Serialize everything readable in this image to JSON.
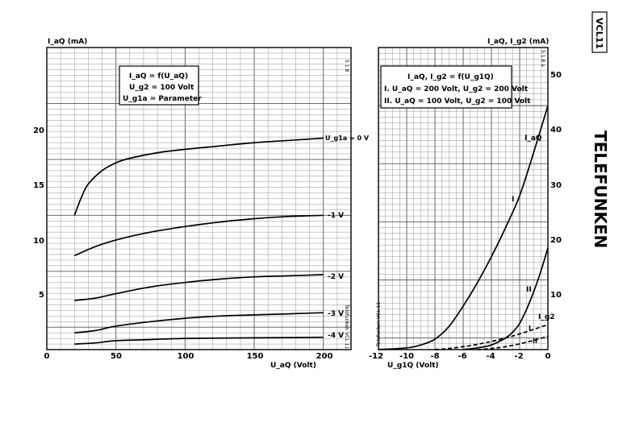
{
  "tube_label": "VCL11",
  "brand": "TELEFUNKEN",
  "colors": {
    "grid": "#8a8a8a",
    "ink": "#000000"
  },
  "chart_data": [
    {
      "type": "line",
      "ylabel": "I_aQ (mA)",
      "xlabel": "U_aQ (Volt)",
      "xlim": [
        0,
        220
      ],
      "ylim": [
        0,
        27
      ],
      "x_ticks": [
        "0",
        "50",
        "100",
        "150",
        "200"
      ],
      "y_ticks": [
        "5",
        "10",
        "15",
        "20"
      ],
      "legend": [
        "I_aQ  = f(U_aQ)",
        "U_g2 = 100 Volt",
        "U_g1a = Parameter"
      ],
      "corner_note": "5 1 8",
      "side_note": "Telefunken VCL 11",
      "series": [
        {
          "name": "U_g1a = 0 V",
          "x": [
            20,
            25,
            30,
            40,
            50,
            60,
            80,
            100,
            125,
            150,
            175,
            200
          ],
          "y": [
            12.0,
            13.6,
            14.8,
            16.0,
            16.7,
            17.1,
            17.6,
            17.9,
            18.2,
            18.5,
            18.7,
            18.9
          ]
        },
        {
          "name": "-1 V",
          "x": [
            20,
            35,
            50,
            75,
            100,
            125,
            150,
            175,
            200
          ],
          "y": [
            8.4,
            9.2,
            9.8,
            10.5,
            11.0,
            11.4,
            11.7,
            11.9,
            12.0
          ]
        },
        {
          "name": "-2 V",
          "x": [
            20,
            35,
            50,
            75,
            100,
            125,
            150,
            175,
            200
          ],
          "y": [
            4.4,
            4.6,
            5.0,
            5.6,
            6.0,
            6.3,
            6.5,
            6.6,
            6.7
          ]
        },
        {
          "name": "-3 V",
          "x": [
            20,
            35,
            50,
            75,
            100,
            125,
            150,
            175,
            200
          ],
          "y": [
            1.5,
            1.7,
            2.1,
            2.5,
            2.8,
            3.0,
            3.1,
            3.2,
            3.3
          ]
        },
        {
          "name": "-4 V",
          "x": [
            20,
            35,
            50,
            75,
            100,
            150,
            200
          ],
          "y": [
            0.5,
            0.6,
            0.8,
            0.9,
            1.0,
            1.05,
            1.1
          ]
        }
      ]
    },
    {
      "type": "line",
      "ylabel": "I_aQ, I_g2 (mA)",
      "xlabel": "U_g1Q (Volt)",
      "xlim": [
        -12,
        0
      ],
      "ylim": [
        0,
        52
      ],
      "x_ticks": [
        "-12",
        "-10",
        "-8",
        "-6",
        "-4",
        "-2",
        "0"
      ],
      "y_ticks": [
        "10",
        "20",
        "30",
        "40",
        "50"
      ],
      "legend": [
        "I_aQ, I_g2 = f(U_g1Q)",
        "I. U_aQ = 200 Volt, U_g2 = 200 Volt",
        "II. U_aQ = 100 Volt, U_g2 = 100 Volt"
      ],
      "corner_note": "5 1 8 a",
      "side_note": "Telefunken VCL 11",
      "curve_labels": [
        "I_aQ",
        "I",
        "II",
        "I_g2",
        "I",
        "II"
      ],
      "series": [
        {
          "name": "I_aQ (I)",
          "dashed": false,
          "x": [
            -12,
            -10,
            -9,
            -8,
            -7,
            -6,
            -5,
            -4,
            -3,
            -2,
            -1,
            0
          ],
          "y": [
            0,
            0.3,
            0.8,
            1.8,
            4.0,
            7.5,
            11.5,
            16.0,
            21.0,
            26.5,
            34.0,
            42.0
          ]
        },
        {
          "name": "I_aQ (II)",
          "dashed": false,
          "x": [
            -6,
            -5,
            -4,
            -3,
            -2.5,
            -2,
            -1.5,
            -1,
            -0.5,
            0
          ],
          "y": [
            0,
            0.3,
            0.8,
            2.0,
            3.0,
            4.5,
            7.0,
            10.0,
            13.5,
            17.5
          ]
        },
        {
          "name": "I_g2 (I)",
          "dashed": true,
          "x": [
            -8,
            -7,
            -6,
            -5,
            -4,
            -3,
            -2,
            -1,
            0
          ],
          "y": [
            0,
            0.2,
            0.5,
            0.9,
            1.4,
            2.0,
            2.7,
            3.5,
            4.3
          ]
        },
        {
          "name": "I_g2 (II)",
          "dashed": true,
          "x": [
            -5,
            -4,
            -3,
            -2,
            -1,
            0
          ],
          "y": [
            0,
            0.2,
            0.5,
            1.0,
            1.6,
            2.3
          ]
        }
      ]
    }
  ]
}
